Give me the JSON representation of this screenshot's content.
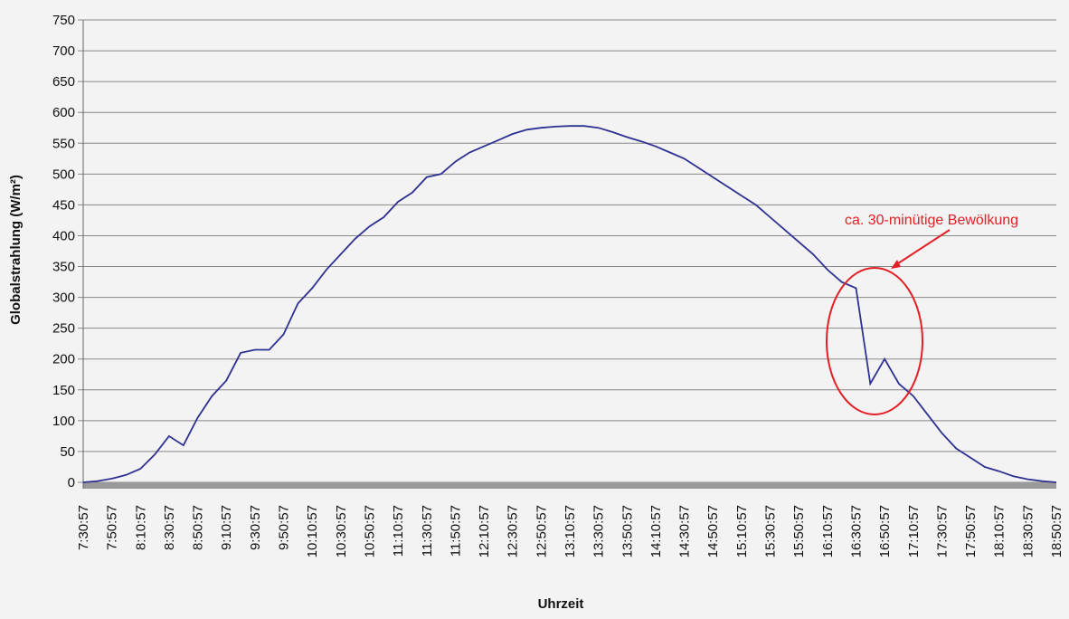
{
  "chart_data": {
    "type": "line",
    "ylabel": "Globalstrahlung (W/m²)",
    "xlabel": "Uhrzeit",
    "annotation": "ca. 30-minütige Bewölkung",
    "categories": [
      "7:30:57",
      null,
      "7:50:57",
      null,
      "8:10:57",
      null,
      "8:30:57",
      null,
      "8:50:57",
      null,
      "9:10:57",
      null,
      "9:30:57",
      null,
      "9:50:57",
      null,
      "10:10:57",
      null,
      "10:30:57",
      null,
      "10:50:57",
      null,
      "11:10:57",
      null,
      "11:30:57",
      null,
      "11:50:57",
      null,
      "12:10:57",
      null,
      "12:30:57",
      null,
      "12:50:57",
      null,
      "13:10:57",
      null,
      "13:30:57",
      null,
      "13:50:57",
      null,
      "14:10:57",
      null,
      "14:30:57",
      null,
      "14:50:57",
      null,
      "15:10:57",
      null,
      "15:30:57",
      null,
      "15:50:57",
      null,
      "16:10:57",
      null,
      "16:30:57",
      null,
      "16:50:57",
      null,
      "17:10:57",
      null,
      "17:30:57",
      null,
      "17:50:57",
      null,
      "18:10:57",
      null,
      "18:30:57",
      null,
      "18:50:57"
    ],
    "series": [
      {
        "name": "Globalstrahlung",
        "color": "#2e3192",
        "values": [
          0,
          2,
          6,
          12,
          22,
          45,
          75,
          60,
          105,
          140,
          165,
          210,
          215,
          215,
          240,
          290,
          315,
          345,
          370,
          395,
          415,
          430,
          455,
          470,
          495,
          500,
          520,
          535,
          545,
          555,
          565,
          572,
          575,
          577,
          578,
          578,
          575,
          568,
          560,
          553,
          545,
          535,
          525,
          510,
          495,
          480,
          465,
          450,
          430,
          410,
          390,
          370,
          345,
          325,
          315,
          160,
          200,
          160,
          140,
          110,
          80,
          55,
          40,
          25,
          18,
          10,
          5,
          2,
          0
        ]
      }
    ],
    "ylim": [
      0,
      750
    ],
    "yticks": [
      0,
      50,
      100,
      150,
      200,
      250,
      300,
      350,
      400,
      450,
      500,
      550,
      600,
      650,
      700,
      750
    ],
    "grid": true
  }
}
